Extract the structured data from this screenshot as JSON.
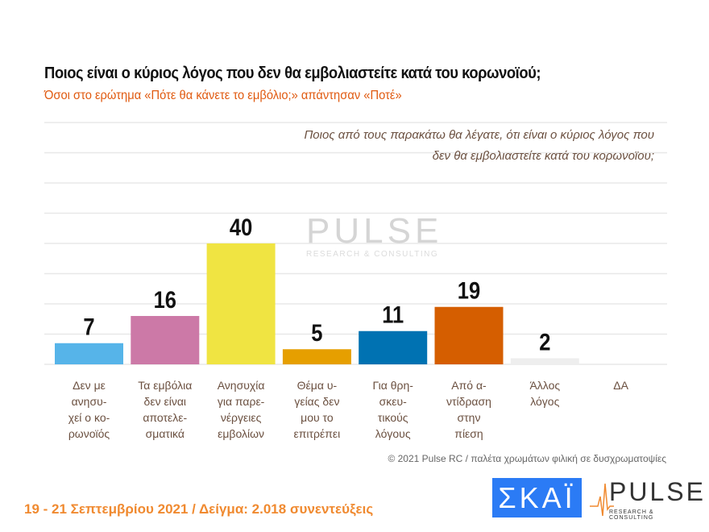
{
  "title": "Ποιος είναι ο κύριος λόγος που δεν θα εμβολιαστείτε κατά του κορωνοϊού;",
  "subtitle": "Όσοι στο ερώτημα «Πότε θα κάνετε το εμβόλιο;» απάντησαν «Ποτέ»",
  "question": "Ποιος από τους παρακάτω θα λέγατε, ότι είναι ο κύριος λόγος που δεν θα εμβολιαστείτε κατά του κορωνοϊου;",
  "chart_data": {
    "type": "bar",
    "categories": [
      "Δεν με ανησυ-χεί ο κο-ρωνοϊός",
      "Τα εμβόλια δεν είναι αποτελε-σματικά",
      "Ανησυχία για παρε-νέργειες εμβολίων",
      "Θέμα υ-γείας δεν μου το επιτρέπει",
      "Για θρη-σκευ-τικούς λόγους",
      "Από α-ντίδραση στην πίεση",
      "Άλλος λόγος",
      "ΔΑ"
    ],
    "category_lines": [
      [
        "Δεν με",
        "ανησυ-",
        "χεί ο κο-",
        "ρωνοϊός"
      ],
      [
        "Τα εμβόλια",
        "δεν είναι",
        "αποτελε-",
        "σματικά"
      ],
      [
        "Ανησυχία",
        "για παρε-",
        "νέργειες",
        "εμβολίων"
      ],
      [
        "Θέμα υ-",
        "γείας δεν",
        "μου το",
        "επιτρέπει"
      ],
      [
        "Για θρη-",
        "σκευ-",
        "τικούς",
        "λόγους"
      ],
      [
        "Από α-",
        "ντίδραση",
        "στην",
        "πίεση"
      ],
      [
        "Άλλος",
        "λόγος"
      ],
      [
        "ΔΑ"
      ]
    ],
    "values": [
      7,
      16,
      40,
      5,
      11,
      19,
      2,
      null
    ],
    "colors": [
      "#56b4e9",
      "#cc79a7",
      "#f0e442",
      "#e69f00",
      "#0072b2",
      "#d55e00",
      "#eeeeee",
      "#cccccc"
    ],
    "ylim": [
      0,
      80
    ],
    "grid": true,
    "axis_labels_shown": false
  },
  "watermark": {
    "brand": "PULSE",
    "tagline": "RESEARCH & CONSULTING"
  },
  "footnote": "© 2021 Pulse RC  /  παλέτα χρωμάτων φιλική σε δυσχρωματοψίες",
  "footer": {
    "date_sample": "19 - 21 Σεπτεμβρίου 2021  /  Δείγμα:  2.018 συνεντεύξεις"
  },
  "logos": {
    "skai": "ΣΚΑΪ",
    "pulse": "PULSE",
    "pulse_tagline": "RESEARCH & CONSULTING"
  }
}
